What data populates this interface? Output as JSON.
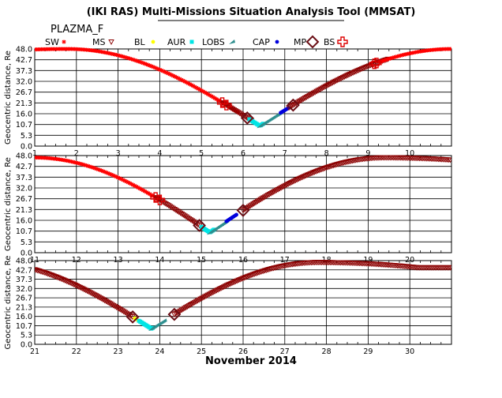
{
  "title": "(IKI RAS) Multi-Missions Situation Analysis Tool (MMSAT)",
  "mission": "PLAZMA_F",
  "footer": "November 2014",
  "legend": [
    {
      "label": "SW",
      "marker": "asterisk",
      "color": "#ff0000"
    },
    {
      "label": "MS",
      "marker": "down-triangle",
      "color": "#8b0000"
    },
    {
      "label": "BL",
      "marker": "dot",
      "color": "#ffff00"
    },
    {
      "label": "AUR",
      "marker": "square",
      "color": "#00e5e5"
    },
    {
      "label": "LOBS",
      "marker": "arrow",
      "color": "#2f8f8f"
    },
    {
      "label": "CAP",
      "marker": "dot",
      "color": "#0000dd"
    },
    {
      "label": "MP",
      "marker": "diamond",
      "color": "#6b0f16"
    },
    {
      "label": "BS",
      "marker": "plus",
      "color": "#dd0000"
    }
  ],
  "chart_data": [
    {
      "type": "scatter",
      "ylabel": "Geocentric distance, Re",
      "xlim": [
        1,
        11
      ],
      "ylim": [
        0,
        48
      ],
      "xticks": [
        "1",
        "2",
        "3",
        "4",
        "5",
        "6",
        "7",
        "8",
        "9",
        "10"
      ],
      "yticks": [
        "0.0",
        "5.3",
        "10.7",
        "16.0",
        "21.3",
        "26.7",
        "32.0",
        "37.3",
        "42.7",
        "48.0"
      ],
      "grid": true,
      "orbits": [
        {
          "perigee_x": 6.4,
          "perigee_y": 10,
          "apogee_x": 11.0,
          "apogee_y": 48
        }
      ],
      "regions": [
        {
          "region": "SW",
          "x_from": 1.0,
          "x_to": 5.9
        },
        {
          "region": "MS",
          "x_from": 5.5,
          "x_to": 6.2
        },
        {
          "region": "AUR",
          "x_from": 6.15,
          "x_to": 6.5
        },
        {
          "region": "LOBS",
          "x_from": 6.4,
          "x_to": 6.9
        },
        {
          "region": "CAP",
          "x_from": 6.9,
          "x_to": 7.1
        },
        {
          "region": "MS",
          "x_from": 7.1,
          "x_to": 9.5
        },
        {
          "region": "SW",
          "x_from": 9.3,
          "x_to": 11.0
        }
      ],
      "crossings": [
        {
          "type": "BS",
          "x": 5.5
        },
        {
          "type": "BS",
          "x": 5.6
        },
        {
          "type": "MP",
          "x": 6.1
        },
        {
          "type": "MP",
          "x": 7.2
        },
        {
          "type": "BS",
          "x": 9.15
        },
        {
          "type": "BS",
          "x": 9.2
        }
      ]
    },
    {
      "type": "scatter",
      "ylabel": "Geocentric distance, Re",
      "xlim": [
        11,
        21
      ],
      "ylim": [
        0,
        48
      ],
      "xticks": [
        "11",
        "12",
        "13",
        "14",
        "15",
        "16",
        "17",
        "18",
        "19",
        "20"
      ],
      "yticks": [
        "0.0",
        "5.3",
        "10.7",
        "16.0",
        "21.3",
        "26.7",
        "32.0",
        "37.3",
        "42.7",
        "48.0"
      ],
      "grid": true,
      "orbits": [
        {
          "perigee_x": 15.2,
          "perigee_y": 10,
          "apogee_x": 19.4,
          "apogee_y": 47
        }
      ],
      "regions": [
        {
          "region": "SW",
          "x_from": 11.0,
          "x_to": 14.0
        },
        {
          "region": "MS",
          "x_from": 13.9,
          "x_to": 14.95
        },
        {
          "region": "AUR",
          "x_from": 15.0,
          "x_to": 15.3
        },
        {
          "region": "LOBS",
          "x_from": 15.2,
          "x_to": 15.6
        },
        {
          "region": "CAP",
          "x_from": 15.6,
          "x_to": 15.85
        },
        {
          "region": "MS",
          "x_from": 16.0,
          "x_to": 21.0
        }
      ],
      "crossings": [
        {
          "type": "BS",
          "x": 13.9
        },
        {
          "type": "BS",
          "x": 14.0
        },
        {
          "type": "MP",
          "x": 14.95
        },
        {
          "type": "MP",
          "x": 16.0
        }
      ]
    },
    {
      "type": "scatter",
      "ylabel": "Geocentric distance, Re",
      "xlim": [
        21,
        31
      ],
      "ylim": [
        0,
        48
      ],
      "xticks": [
        "21",
        "22",
        "23",
        "24",
        "25",
        "26",
        "27",
        "28",
        "29",
        "30"
      ],
      "yticks": [
        "0.0",
        "5.3",
        "10.7",
        "16.0",
        "21.3",
        "26.7",
        "32.0",
        "37.3",
        "42.7",
        "48.0"
      ],
      "grid": true,
      "orbits": [
        {
          "perigee_x": 23.8,
          "perigee_y": 9,
          "apogee_x": 27.8,
          "apogee_y": 47
        }
      ],
      "regions": [
        {
          "region": "MS",
          "x_from": 21.0,
          "x_to": 23.35
        },
        {
          "region": "BL",
          "x_from": 23.4,
          "x_to": 23.6
        },
        {
          "region": "AUR",
          "x_from": 23.5,
          "x_to": 23.85
        },
        {
          "region": "LOBS",
          "x_from": 23.8,
          "x_to": 24.1
        },
        {
          "region": "MS",
          "x_from": 24.35,
          "x_to": 31.0
        }
      ],
      "crossings": [
        {
          "type": "MP",
          "x": 23.35
        },
        {
          "type": "MP",
          "x": 24.35
        }
      ]
    }
  ]
}
